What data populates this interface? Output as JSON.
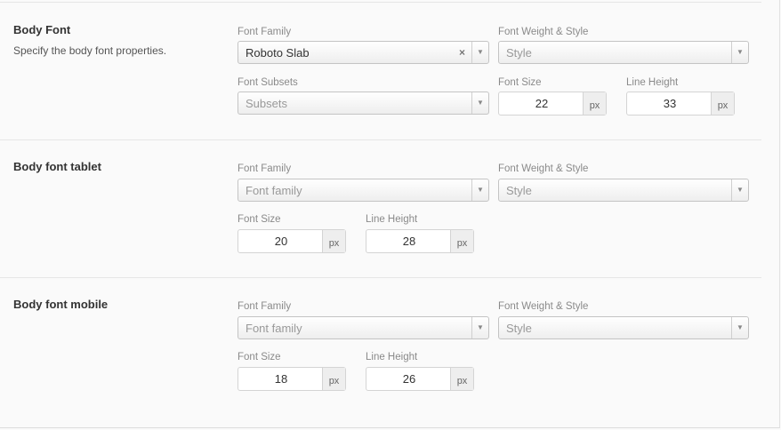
{
  "sections": [
    {
      "title": "Body Font",
      "description": "Specify the body font properties.",
      "family_label": "Font Family",
      "family_value": "Roboto Slab",
      "weight_label": "Font Weight & Style",
      "weight_placeholder": "Style",
      "subsets_label": "Font Subsets",
      "subsets_placeholder": "Subsets",
      "size_label": "Font Size",
      "size_value": "22",
      "size_unit": "px",
      "lh_label": "Line Height",
      "lh_value": "33",
      "lh_unit": "px"
    },
    {
      "title": "Body font tablet",
      "family_label": "Font Family",
      "family_placeholder": "Font family",
      "weight_label": "Font Weight & Style",
      "weight_placeholder": "Style",
      "size_label": "Font Size",
      "size_value": "20",
      "size_unit": "px",
      "lh_label": "Line Height",
      "lh_value": "28",
      "lh_unit": "px"
    },
    {
      "title": "Body font mobile",
      "family_label": "Font Family",
      "family_placeholder": "Font family",
      "weight_label": "Font Weight & Style",
      "weight_placeholder": "Style",
      "size_label": "Font Size",
      "size_value": "18",
      "size_unit": "px",
      "lh_label": "Line Height",
      "lh_value": "26",
      "lh_unit": "px"
    }
  ],
  "icons": {
    "clear": "×",
    "dropdown": "▼"
  }
}
